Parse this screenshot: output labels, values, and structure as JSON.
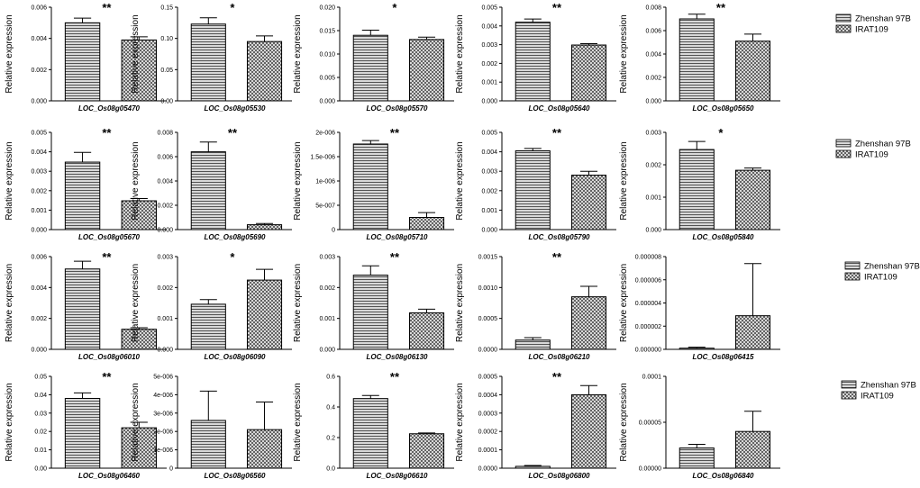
{
  "chart_data": {
    "type": "bar",
    "ylabel": "Relative expression",
    "legend": [
      "Zhenshan 97B",
      "IRAT109"
    ],
    "legend_rows": [
      0,
      1,
      2,
      3
    ],
    "panels": [
      {
        "title": "LOC_Os08g05470",
        "ymax": 0.006,
        "ticks": [
          "0.000",
          "0.002",
          "0.004",
          "0.006"
        ],
        "values": [
          0.005,
          0.0039
        ],
        "errors": [
          0.0003,
          0.0002
        ],
        "sig": "**"
      },
      {
        "title": "LOC_Os08g05530",
        "ymax": 0.15,
        "ticks": [
          "0.00",
          "0.05",
          "0.10",
          "0.15"
        ],
        "values": [
          0.123,
          0.095
        ],
        "errors": [
          0.01,
          0.009
        ],
        "sig": "*"
      },
      {
        "title": "LOC_Os08g05570",
        "ymax": 0.02,
        "ticks": [
          "0.000",
          "0.005",
          "0.010",
          "0.015",
          "0.020"
        ],
        "values": [
          0.014,
          0.0131
        ],
        "errors": [
          0.0011,
          0.0005
        ],
        "sig": "*"
      },
      {
        "title": "LOC_Os08g05640",
        "ymax": 0.005,
        "ticks": [
          "0.000",
          "0.001",
          "0.002",
          "0.003",
          "0.004",
          "0.005"
        ],
        "values": [
          0.0042,
          0.00298
        ],
        "errors": [
          0.00017,
          7e-05
        ],
        "sig": "**"
      },
      {
        "title": "LOC_Os08g05650",
        "ymax": 0.008,
        "ticks": [
          "0.000",
          "0.002",
          "0.004",
          "0.006",
          "0.008"
        ],
        "values": [
          0.007,
          0.0051
        ],
        "errors": [
          0.0004,
          0.0006
        ],
        "sig": "**"
      },
      {
        "title": "LOC_Os08g05670",
        "ymax": 0.005,
        "ticks": [
          "0.000",
          "0.001",
          "0.002",
          "0.003",
          "0.004",
          "0.005"
        ],
        "values": [
          0.00347,
          0.00148
        ],
        "errors": [
          0.0005,
          0.00012
        ],
        "sig": "**"
      },
      {
        "title": "LOC_Os08g05690",
        "ymax": 0.008,
        "ticks": [
          "0.000",
          "0.002",
          "0.004",
          "0.006",
          "0.008"
        ],
        "values": [
          0.0064,
          0.0004
        ],
        "errors": [
          0.0008,
          0.0001
        ],
        "sig": "**"
      },
      {
        "title": "LOC_Os08g05710",
        "ymax": 2e-06,
        "ticks": [
          "0",
          "5e-007",
          "1e-006",
          "1.5e-006",
          "2e-006"
        ],
        "values": [
          1.76e-06,
          2.5e-07
        ],
        "errors": [
          7e-08,
          1e-07
        ],
        "sig": "**"
      },
      {
        "title": "LOC_Os08g05790",
        "ymax": 0.005,
        "ticks": [
          "0.000",
          "0.001",
          "0.002",
          "0.003",
          "0.004",
          "0.005"
        ],
        "values": [
          0.00405,
          0.0028
        ],
        "errors": [
          0.00012,
          0.0002
        ],
        "sig": "**"
      },
      {
        "title": "LOC_Os08g05840",
        "ymax": 0.003,
        "ticks": [
          "0.000",
          "0.001",
          "0.002",
          "0.003"
        ],
        "values": [
          0.00247,
          0.00183
        ],
        "errors": [
          0.00025,
          7e-05
        ],
        "sig": "*"
      },
      {
        "title": "LOC_Os08g06010",
        "ymax": 0.006,
        "ticks": [
          "0.000",
          "0.002",
          "0.004",
          "0.006"
        ],
        "values": [
          0.0052,
          0.0013
        ],
        "errors": [
          0.0005,
          0.0001
        ],
        "sig": "**"
      },
      {
        "title": "LOC_Os08g06090",
        "ymax": 0.003,
        "ticks": [
          "0.000",
          "0.001",
          "0.002",
          "0.003"
        ],
        "values": [
          0.00146,
          0.00224
        ],
        "errors": [
          0.00015,
          0.00035
        ],
        "sig": "*"
      },
      {
        "title": "LOC_Os08g06130",
        "ymax": 0.003,
        "ticks": [
          "0.000",
          "0.001",
          "0.002",
          "0.003"
        ],
        "values": [
          0.0024,
          0.00118
        ],
        "errors": [
          0.0003,
          0.00012
        ],
        "sig": "**"
      },
      {
        "title": "LOC_Os08g06210",
        "ymax": 0.0015,
        "ticks": [
          "0.0000",
          "0.0005",
          "0.0010",
          "0.0015"
        ],
        "values": [
          0.00015,
          0.00085
        ],
        "errors": [
          4e-05,
          0.00017
        ],
        "sig": "**"
      },
      {
        "title": "LOC_Os08g06415",
        "ymax": 8e-06,
        "ticks": [
          "0.000000",
          "0.000002",
          "0.000004",
          "0.000006",
          "0.000008"
        ],
        "values": [
          1e-07,
          2.9e-06
        ],
        "errors": [
          8e-08,
          4.5e-06
        ],
        "sig": ""
      },
      {
        "title": "LOC_Os08g06460",
        "ymax": 0.05,
        "ticks": [
          "0.00",
          "0.01",
          "0.02",
          "0.03",
          "0.04",
          "0.05"
        ],
        "values": [
          0.038,
          0.022
        ],
        "errors": [
          0.003,
          0.003
        ],
        "sig": "**"
      },
      {
        "title": "LOC_Os08g06560",
        "ymax": 5e-06,
        "ticks": [
          "0",
          "1e-006",
          "2e-006",
          "3e-006",
          "4e-006",
          "5e-006"
        ],
        "values": [
          2.6e-06,
          2.1e-06
        ],
        "errors": [
          1.6e-06,
          1.5e-06
        ],
        "sig": ""
      },
      {
        "title": "LOC_Os08g06610",
        "ymax": 0.6,
        "ticks": [
          "0.0",
          "0.2",
          "0.4",
          "0.6"
        ],
        "values": [
          0.455,
          0.225
        ],
        "errors": [
          0.02,
          0.005
        ],
        "sig": "**"
      },
      {
        "title": "LOC_Os08g06800",
        "ymax": 0.0005,
        "ticks": [
          "0.0000",
          "0.0001",
          "0.0002",
          "0.0003",
          "0.0004",
          "0.0005"
        ],
        "values": [
          1e-05,
          0.0004
        ],
        "errors": [
          5e-06,
          5e-05
        ],
        "sig": "**"
      },
      {
        "title": "LOC_Os08g06840",
        "ymax": 0.0001,
        "ticks": [
          "0.00000",
          "0.00005",
          "0.0001"
        ],
        "values": [
          2.2e-05,
          4e-05
        ],
        "errors": [
          4e-06,
          2.2e-05
        ],
        "sig": ""
      }
    ]
  }
}
